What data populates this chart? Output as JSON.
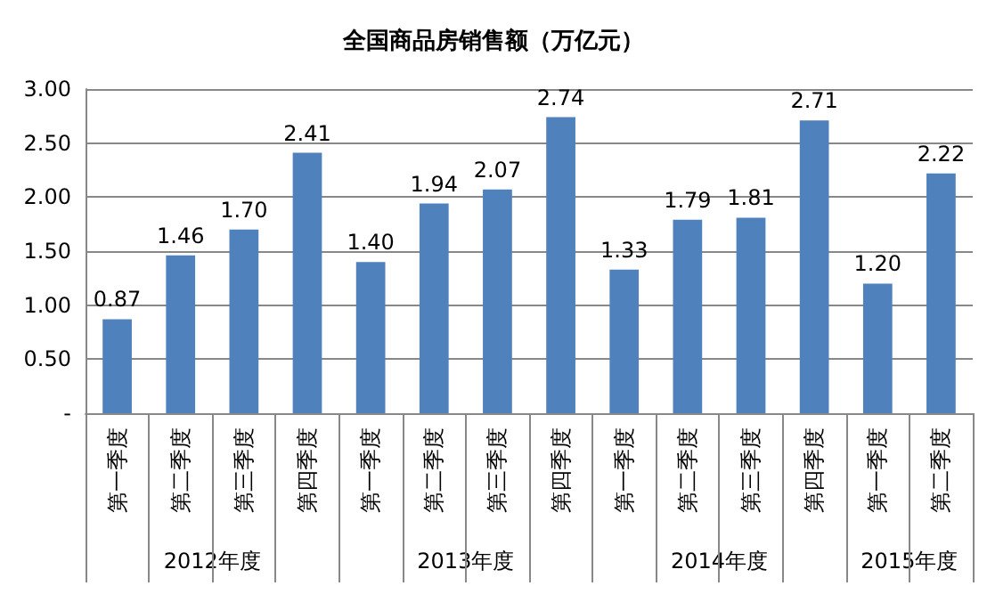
{
  "chart_data": {
    "type": "bar",
    "title": "全国商品房销售额（万亿元）",
    "categories": [
      "第一季度",
      "第二季度",
      "第三季度",
      "第四季度",
      "第一季度",
      "第二季度",
      "第三季度",
      "第四季度",
      "第一季度",
      "第二季度",
      "第三季度",
      "第四季度",
      "第一季度",
      "第二季度"
    ],
    "values": [
      0.87,
      1.46,
      1.7,
      2.41,
      1.4,
      1.94,
      2.07,
      2.74,
      1.33,
      1.79,
      1.81,
      2.71,
      1.2,
      2.22
    ],
    "value_labels": [
      "0.87",
      "1.46",
      "1.70",
      "2.41",
      "1.40",
      "1.94",
      "2.07",
      "2.74",
      "1.33",
      "1.79",
      "1.81",
      "2.71",
      "1.20",
      "2.22"
    ],
    "color": "#4f81bd",
    "ylim": [
      0,
      3
    ],
    "yticks": [
      {
        "value": 0,
        "label": "-"
      },
      {
        "value": 0.5,
        "label": "0.50"
      },
      {
        "value": 1,
        "label": "1.00"
      },
      {
        "value": 1.5,
        "label": "1.50"
      },
      {
        "value": 2,
        "label": "2.00"
      },
      {
        "value": 2.5,
        "label": "2.50"
      },
      {
        "value": 3,
        "label": "3.00"
      }
    ],
    "grid": true,
    "annotations": [
      "2012年度",
      "2013年度",
      "2014年度",
      "2015年度"
    ]
  }
}
